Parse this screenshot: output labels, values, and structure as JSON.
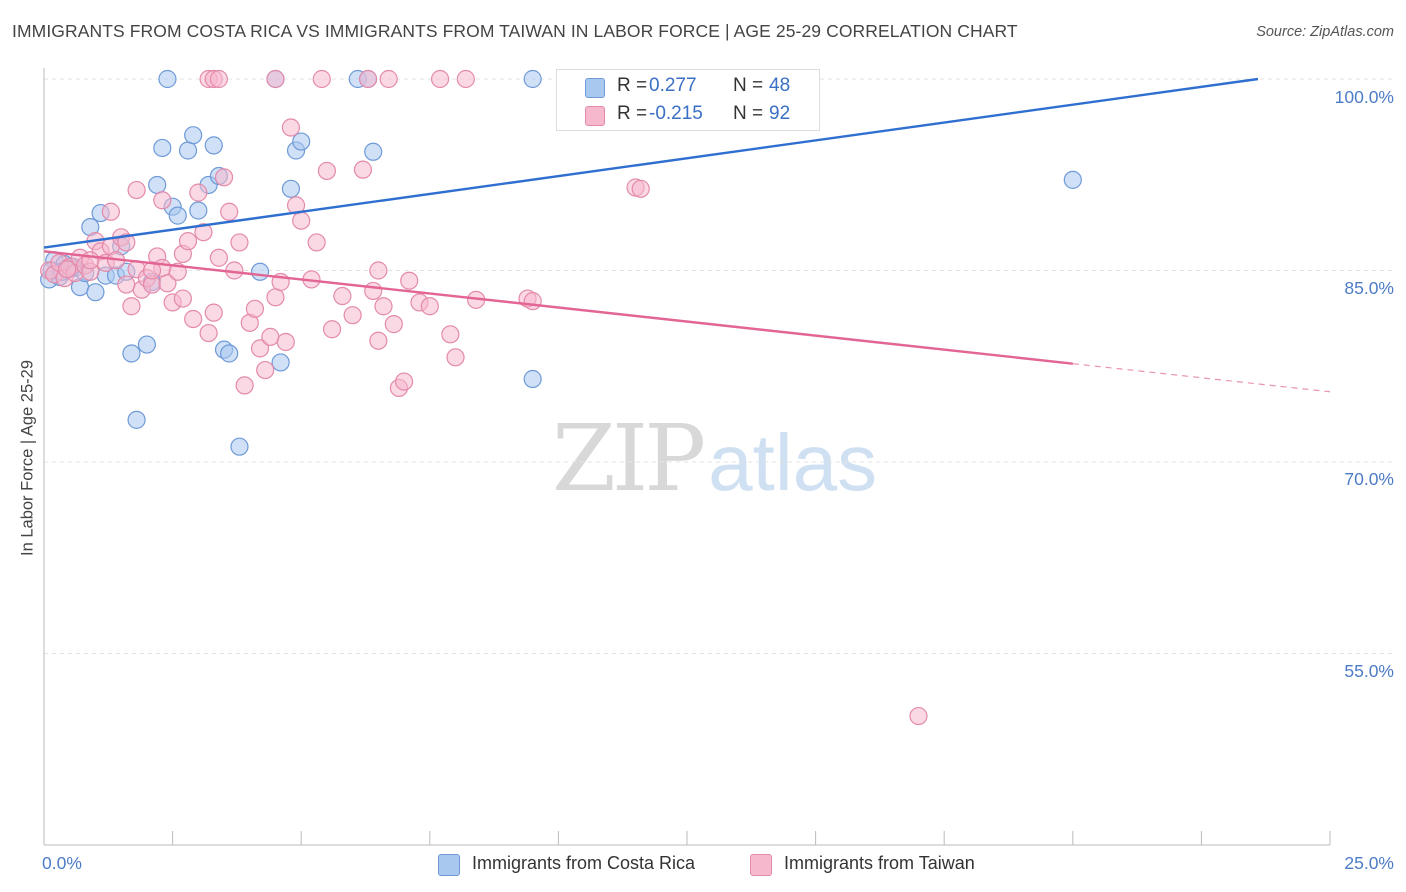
{
  "title": "IMMIGRANTS FROM COSTA RICA VS IMMIGRANTS FROM TAIWAN IN LABOR FORCE | AGE 25-29 CORRELATION CHART",
  "source": "Source: ZipAtlas.com",
  "watermark": {
    "zip": "ZIP",
    "atlas": "atlas"
  },
  "colors": {
    "blue_fill": "#a9c8f0",
    "blue_stroke": "#6f9ad8",
    "blue_line": "#2f6fd0",
    "pink_fill": "#f6b8cd",
    "pink_stroke": "#e48aaa",
    "pink_line": "#e26594",
    "tick_color": "#4d7cc7",
    "grid": "#e3e3e3"
  },
  "stats": [
    {
      "r_label": "R =",
      "r_value": "0.277",
      "n_label": "N =",
      "n_value": "48"
    },
    {
      "r_label": "R =",
      "r_value": "-0.215",
      "n_label": "N =",
      "n_value": "92"
    }
  ],
  "legend": [
    {
      "label": "Immigrants from Costa Rica"
    },
    {
      "label": "Immigrants from Taiwan"
    }
  ],
  "chart_data": {
    "type": "scatter",
    "title": "IMMIGRANTS FROM COSTA RICA VS IMMIGRANTS FROM TAIWAN IN LABOR FORCE | AGE 25-29 CORRELATION CHART",
    "xlabel": "",
    "ylabel": "In Labor Force | Age 25-29",
    "xlim": [
      0,
      25
    ],
    "ylim": [
      40,
      100
    ],
    "x_tick_labels": [
      "0.0%",
      "25.0%"
    ],
    "y_ticks": [
      100,
      85,
      70,
      55
    ],
    "y_tick_labels": [
      "100.0%",
      "85.0%",
      "70.0%",
      "55.0%"
    ],
    "grid": true,
    "series": [
      {
        "name": "Immigrants from Costa Rica",
        "r": 0.277,
        "n": 48,
        "trend": {
          "x": [
            0,
            23.6
          ],
          "y": [
            86.8,
            100.0
          ],
          "dashed_to": null
        },
        "points": [
          [
            0.1,
            84.3
          ],
          [
            0.2,
            85.8
          ],
          [
            0.3,
            84.5
          ],
          [
            0.4,
            85.5
          ],
          [
            0.5,
            85.1
          ],
          [
            0.6,
            85.2
          ],
          [
            0.7,
            83.7
          ],
          [
            0.8,
            84.8
          ],
          [
            0.9,
            88.4
          ],
          [
            1.0,
            83.3
          ],
          [
            1.1,
            89.5
          ],
          [
            1.2,
            84.6
          ],
          [
            1.4,
            84.6
          ],
          [
            1.5,
            86.9
          ],
          [
            1.6,
            84.9
          ],
          [
            1.7,
            78.5
          ],
          [
            1.8,
            73.3
          ],
          [
            2.0,
            79.2
          ],
          [
            2.1,
            84.1
          ],
          [
            2.2,
            91.7
          ],
          [
            2.3,
            94.6
          ],
          [
            2.4,
            100.0
          ],
          [
            2.5,
            90.0
          ],
          [
            2.6,
            89.3
          ],
          [
            2.8,
            94.4
          ],
          [
            2.9,
            95.6
          ],
          [
            3.0,
            89.7
          ],
          [
            3.2,
            91.7
          ],
          [
            3.3,
            94.8
          ],
          [
            3.4,
            92.4
          ],
          [
            3.5,
            78.8
          ],
          [
            3.6,
            78.5
          ],
          [
            3.8,
            71.2
          ],
          [
            4.2,
            84.9
          ],
          [
            4.5,
            100.0
          ],
          [
            4.6,
            77.8
          ],
          [
            4.8,
            91.4
          ],
          [
            4.9,
            94.4
          ],
          [
            5.0,
            95.1
          ],
          [
            6.1,
            100.0
          ],
          [
            6.3,
            100.0
          ],
          [
            6.4,
            94.3
          ],
          [
            9.5,
            100.0
          ],
          [
            9.5,
            76.5
          ],
          [
            20.0,
            92.1
          ],
          [
            0.15,
            85.0
          ],
          [
            0.35,
            84.9
          ],
          [
            0.55,
            85.3
          ]
        ]
      },
      {
        "name": "Immigrants from Taiwan",
        "r": -0.215,
        "n": 92,
        "trend": {
          "x": [
            0,
            20.0
          ],
          "y": [
            86.5,
            77.7
          ],
          "dashed_to": {
            "x": 25.0,
            "y": 75.5
          }
        },
        "points": [
          [
            0.1,
            85.0
          ],
          [
            0.2,
            84.7
          ],
          [
            0.3,
            85.6
          ],
          [
            0.4,
            84.4
          ],
          [
            0.5,
            85.3
          ],
          [
            0.6,
            84.8
          ],
          [
            0.7,
            86.0
          ],
          [
            0.8,
            85.4
          ],
          [
            0.9,
            84.9
          ],
          [
            1.0,
            87.3
          ],
          [
            1.1,
            86.5
          ],
          [
            1.2,
            85.6
          ],
          [
            1.3,
            86.9
          ],
          [
            1.4,
            85.8
          ],
          [
            1.5,
            87.6
          ],
          [
            1.6,
            87.2
          ],
          [
            1.7,
            82.2
          ],
          [
            1.8,
            85.1
          ],
          [
            1.9,
            83.5
          ],
          [
            2.0,
            84.4
          ],
          [
            2.1,
            83.9
          ],
          [
            2.2,
            86.1
          ],
          [
            2.3,
            85.2
          ],
          [
            2.4,
            84.0
          ],
          [
            2.5,
            82.5
          ],
          [
            2.6,
            84.9
          ],
          [
            2.7,
            86.3
          ],
          [
            2.8,
            87.3
          ],
          [
            2.9,
            81.2
          ],
          [
            3.0,
            91.1
          ],
          [
            3.1,
            88.0
          ],
          [
            3.2,
            80.1
          ],
          [
            3.3,
            81.7
          ],
          [
            3.4,
            86.0
          ],
          [
            3.5,
            92.3
          ],
          [
            3.6,
            89.6
          ],
          [
            3.7,
            85.0
          ],
          [
            3.8,
            87.2
          ],
          [
            3.9,
            76.0
          ],
          [
            4.0,
            80.9
          ],
          [
            4.1,
            82.0
          ],
          [
            4.2,
            78.9
          ],
          [
            4.3,
            77.2
          ],
          [
            4.4,
            79.8
          ],
          [
            4.5,
            82.9
          ],
          [
            4.6,
            84.1
          ],
          [
            4.7,
            79.4
          ],
          [
            4.8,
            96.2
          ],
          [
            4.9,
            90.1
          ],
          [
            5.0,
            88.9
          ],
          [
            5.2,
            84.3
          ],
          [
            5.4,
            100.0
          ],
          [
            5.5,
            92.8
          ],
          [
            5.6,
            80.4
          ],
          [
            5.8,
            83.0
          ],
          [
            6.0,
            81.5
          ],
          [
            6.2,
            92.9
          ],
          [
            6.4,
            83.4
          ],
          [
            6.5,
            79.5
          ],
          [
            6.6,
            82.2
          ],
          [
            6.7,
            100.0
          ],
          [
            6.8,
            80.8
          ],
          [
            6.9,
            75.8
          ],
          [
            7.0,
            76.3
          ],
          [
            7.1,
            84.2
          ],
          [
            7.3,
            82.5
          ],
          [
            7.5,
            82.2
          ],
          [
            7.7,
            100.0
          ],
          [
            7.9,
            80.0
          ],
          [
            8.0,
            78.2
          ],
          [
            8.2,
            100.0
          ],
          [
            8.4,
            82.7
          ],
          [
            9.4,
            82.8
          ],
          [
            9.5,
            82.6
          ],
          [
            11.5,
            91.5
          ],
          [
            11.6,
            91.4
          ],
          [
            17.0,
            50.1
          ],
          [
            3.2,
            100.0
          ],
          [
            3.3,
            100.0
          ],
          [
            3.4,
            100.0
          ],
          [
            4.5,
            100.0
          ],
          [
            6.3,
            100.0
          ],
          [
            1.8,
            91.3
          ],
          [
            2.3,
            90.5
          ],
          [
            2.7,
            82.8
          ],
          [
            1.3,
            89.6
          ],
          [
            0.9,
            85.8
          ],
          [
            5.3,
            87.2
          ],
          [
            6.5,
            85.0
          ],
          [
            2.1,
            85.0
          ],
          [
            1.6,
            83.9
          ],
          [
            0.45,
            85.1
          ]
        ]
      }
    ]
  }
}
